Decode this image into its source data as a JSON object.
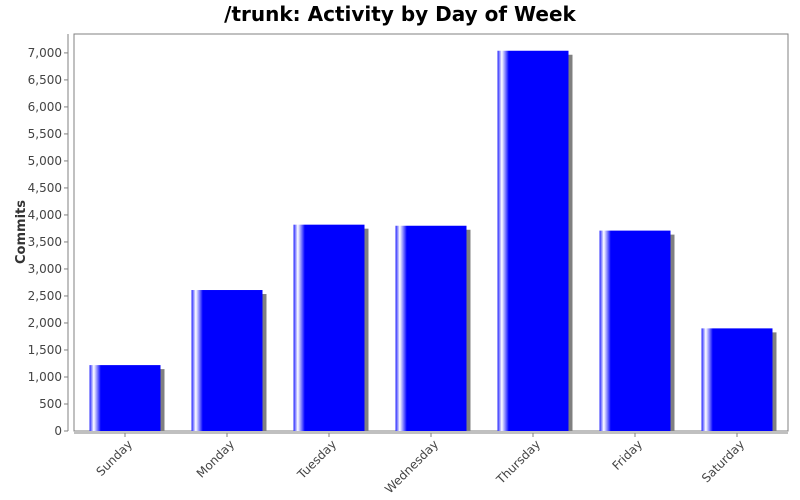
{
  "chart_data": {
    "type": "bar",
    "title": "/trunk: Activity by Day of Week",
    "xlabel": "",
    "ylabel": "Commits",
    "categories": [
      "Sunday",
      "Monday",
      "Tuesday",
      "Wednesday",
      "Thursday",
      "Friday",
      "Saturday"
    ],
    "values": [
      1220,
      2610,
      3820,
      3800,
      7040,
      3710,
      1900
    ],
    "ylim": [
      0,
      7350
    ],
    "yticks": [
      0,
      500,
      1000,
      1500,
      2000,
      2500,
      3000,
      3500,
      4000,
      4500,
      5000,
      5500,
      6000,
      6500,
      7000
    ],
    "ytick_labels": [
      "0",
      "500",
      "1,000",
      "1,500",
      "2,000",
      "2,500",
      "3,000",
      "3,500",
      "4,000",
      "4,500",
      "5,000",
      "5,500",
      "6,000",
      "6,500",
      "7,000"
    ],
    "grid": false,
    "legend": "none",
    "colors": {
      "bar": "#0000ff",
      "shadow": "#808080",
      "highlight": "#ffffff",
      "plot_border": "#808080"
    }
  }
}
